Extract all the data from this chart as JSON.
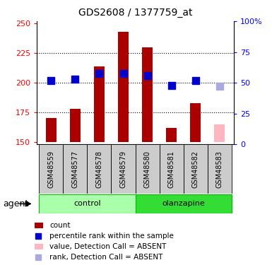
{
  "title": "GDS2608 / 1377759_at",
  "samples": [
    "GSM48559",
    "GSM48577",
    "GSM48578",
    "GSM48579",
    "GSM48580",
    "GSM48581",
    "GSM48582",
    "GSM48583"
  ],
  "bar_values": [
    170,
    178,
    214,
    243,
    230,
    162,
    183,
    165
  ],
  "bar_baseline": 150,
  "rank_values": [
    202,
    203,
    208,
    208,
    206,
    198,
    202,
    197
  ],
  "absent": [
    false,
    false,
    false,
    false,
    false,
    false,
    false,
    true
  ],
  "groups": [
    {
      "label": "control",
      "indices": [
        0,
        1,
        2,
        3
      ],
      "color": "#aaffaa",
      "border": "#00bb00"
    },
    {
      "label": "olanzapine",
      "indices": [
        4,
        5,
        6,
        7
      ],
      "color": "#33dd33",
      "border": "#00bb00"
    }
  ],
  "ylim_left": [
    148,
    252
  ],
  "ylim_right": [
    0,
    100
  ],
  "yticks_left": [
    150,
    175,
    200,
    225,
    250
  ],
  "yticks_right": [
    0,
    25,
    50,
    75,
    100
  ],
  "bar_color_present": "#aa0000",
  "bar_color_absent": "#ffb6c1",
  "rank_color_present": "#0000cc",
  "rank_color_absent": "#aaaadd",
  "rank_marker_size": 55,
  "group_box_color": "#cccccc",
  "agent_label": "agent",
  "legend_items": [
    {
      "label": "count",
      "color": "#aa0000",
      "type": "bar"
    },
    {
      "label": "percentile rank within the sample",
      "color": "#0000cc",
      "type": "rank"
    },
    {
      "label": "value, Detection Call = ABSENT",
      "color": "#ffb6c1",
      "type": "bar"
    },
    {
      "label": "rank, Detection Call = ABSENT",
      "color": "#aaaadd",
      "type": "rank"
    }
  ]
}
